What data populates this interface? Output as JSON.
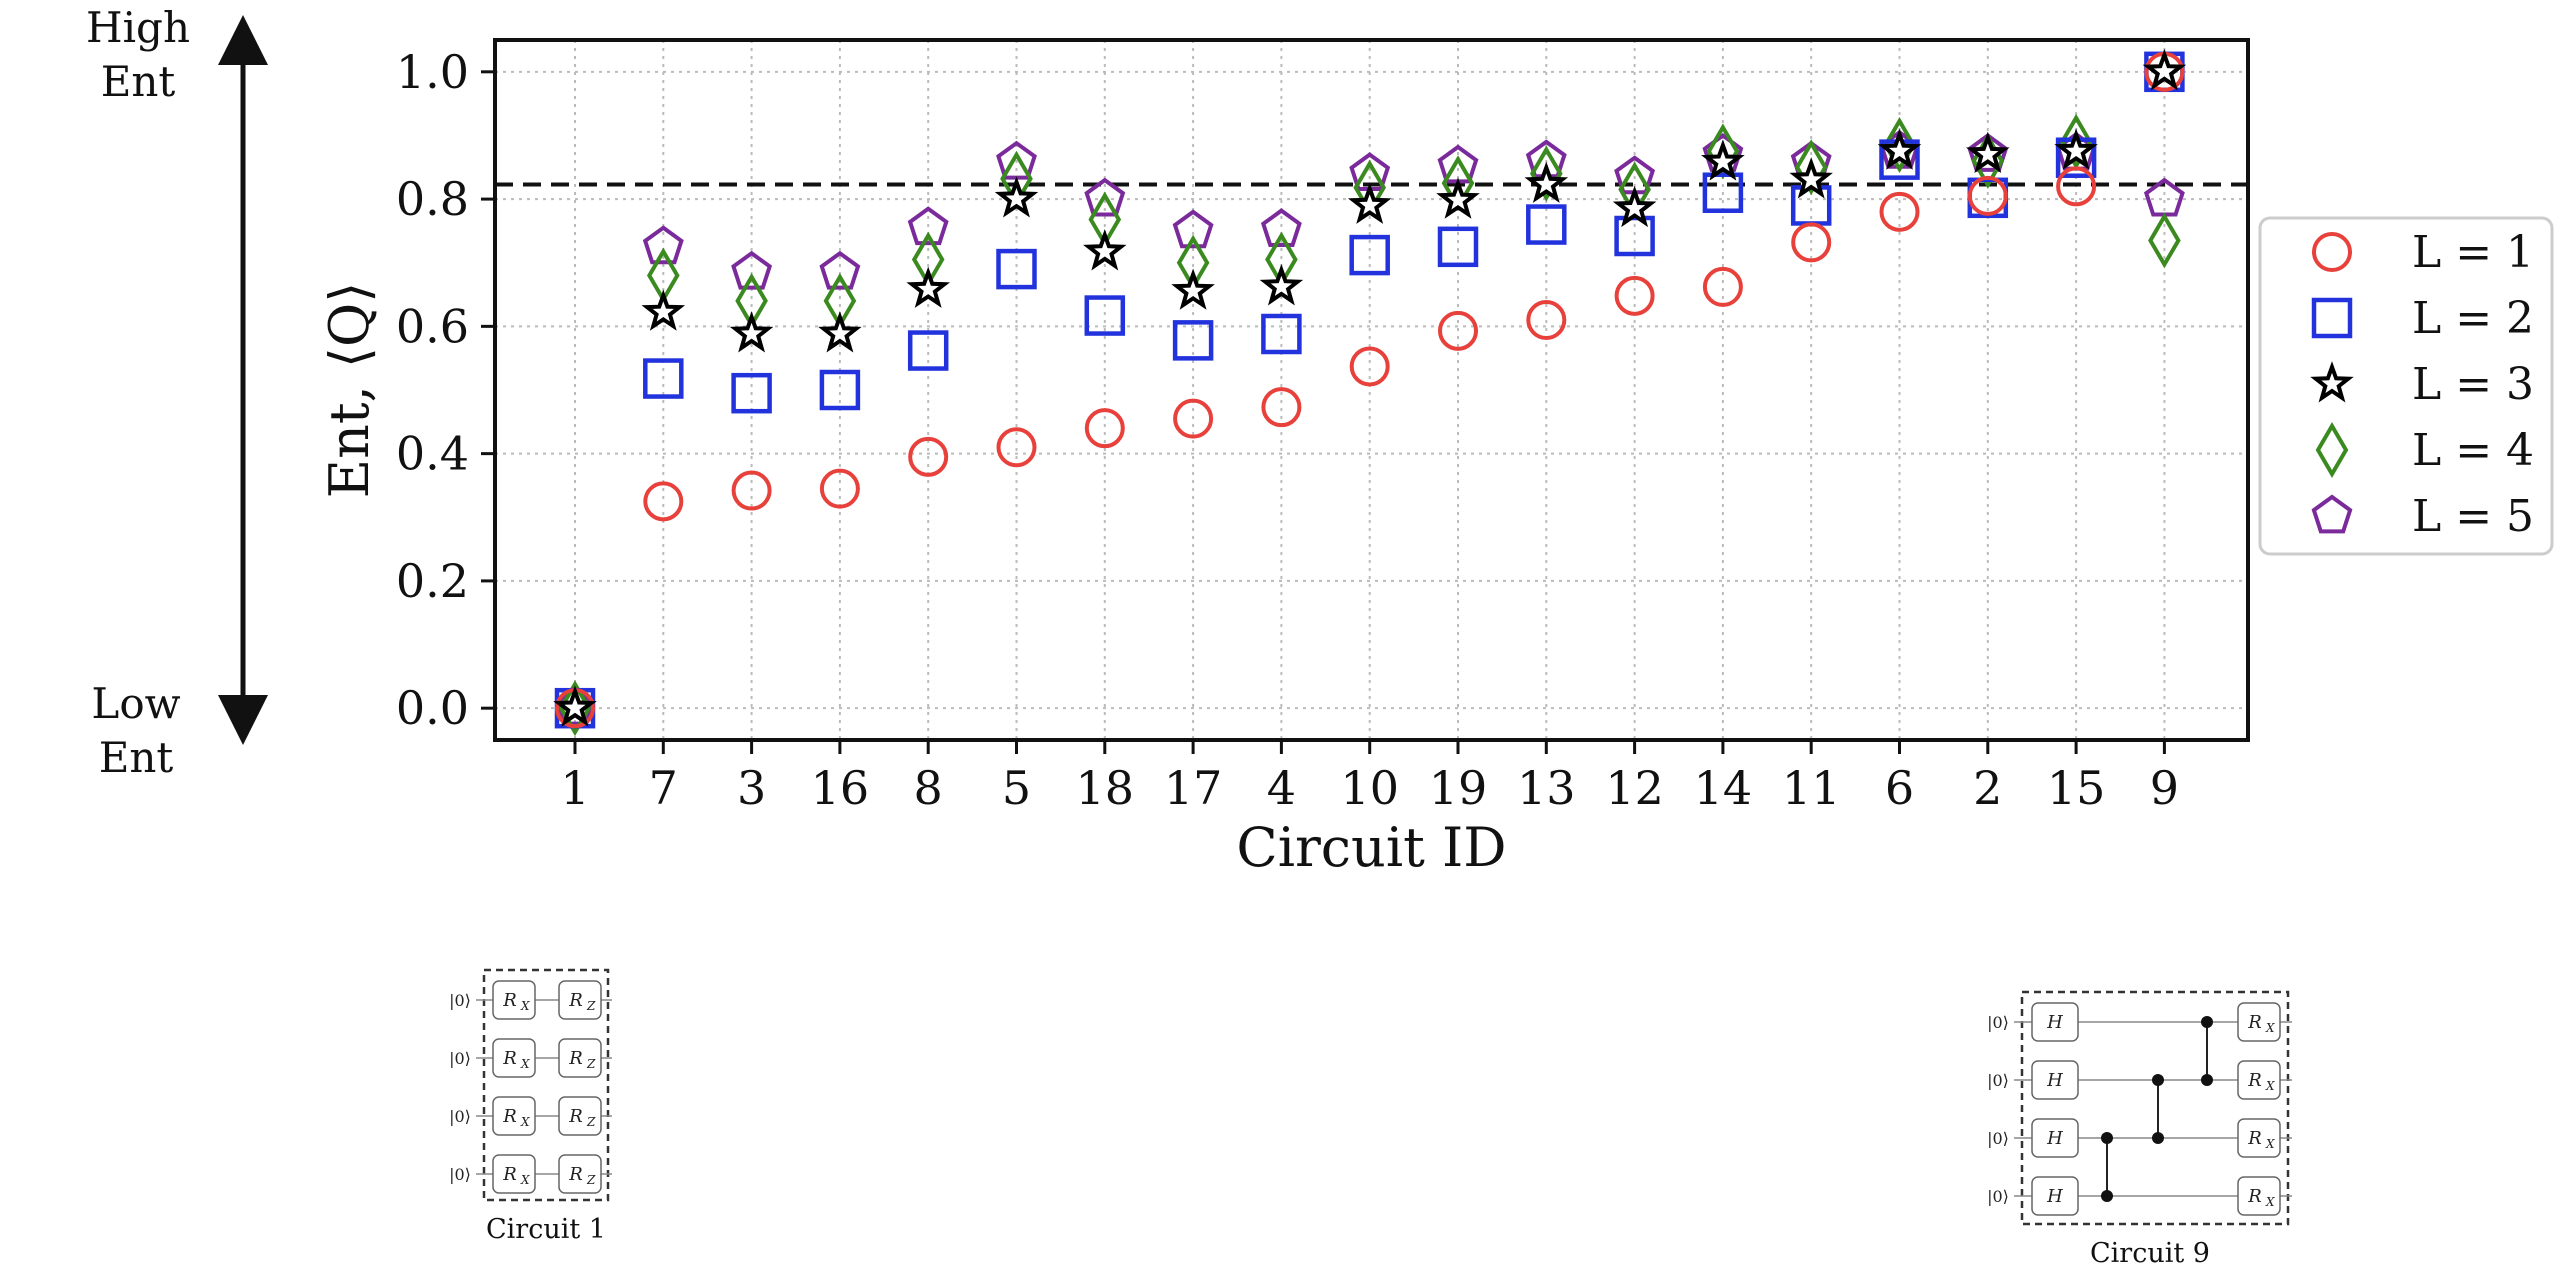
{
  "chart_data": {
    "type": "scatter",
    "title": "",
    "xlabel": "Circuit ID",
    "ylabel": "Ent, ⟨Q⟩",
    "ylim": [
      -0.05,
      1.05
    ],
    "yticks": [
      "0.0",
      "0.2",
      "0.4",
      "0.6",
      "0.8",
      "1.0"
    ],
    "categories": [
      "1",
      "7",
      "3",
      "16",
      "8",
      "5",
      "18",
      "17",
      "4",
      "10",
      "19",
      "13",
      "12",
      "14",
      "11",
      "6",
      "2",
      "15",
      "9"
    ],
    "grid": true,
    "legend_position": "right",
    "reference_line": {
      "y": 0.823,
      "style": "dashed"
    },
    "series": [
      {
        "name": "L = 1",
        "marker": "circle",
        "color": "#e8413c",
        "values": [
          0.0,
          0.325,
          0.342,
          0.345,
          0.395,
          0.41,
          0.44,
          0.455,
          0.473,
          0.537,
          0.593,
          0.61,
          0.648,
          0.662,
          0.732,
          0.78,
          0.805,
          0.82,
          1.0
        ]
      },
      {
        "name": "L = 2",
        "marker": "square",
        "color": "#2233dd",
        "values": [
          0.0,
          0.518,
          0.495,
          0.5,
          0.562,
          0.69,
          0.617,
          0.578,
          0.588,
          0.712,
          0.725,
          0.76,
          0.742,
          0.81,
          0.79,
          0.862,
          0.802,
          0.865,
          1.0
        ]
      },
      {
        "name": "L = 3",
        "marker": "star",
        "color": "#000000",
        "values": [
          0.0,
          0.622,
          0.588,
          0.588,
          0.658,
          0.8,
          0.717,
          0.655,
          0.662,
          0.79,
          0.798,
          0.823,
          0.785,
          0.858,
          0.83,
          0.875,
          0.87,
          0.875,
          1.0
        ]
      },
      {
        "name": "L = 4",
        "marker": "diamond",
        "color": "#3a8a1f",
        "values": [
          0.0,
          0.68,
          0.64,
          0.64,
          0.705,
          0.832,
          0.768,
          0.7,
          0.705,
          0.818,
          0.825,
          0.84,
          0.815,
          0.875,
          0.85,
          0.885,
          0.86,
          0.89,
          0.735
        ]
      },
      {
        "name": "L = 5",
        "marker": "pentagon",
        "color": "#7a2a9a",
        "values": [
          0.0,
          0.725,
          0.685,
          0.685,
          0.755,
          0.858,
          0.8,
          0.75,
          0.752,
          0.84,
          0.852,
          0.86,
          0.835,
          0.87,
          0.858,
          0.875,
          0.87,
          0.872,
          0.8
        ]
      }
    ]
  },
  "side_labels": {
    "high_line1": "High",
    "high_line2": "Ent",
    "low_line1": "Low",
    "low_line2": "Ent"
  },
  "circuits": {
    "circuit1": {
      "caption": "Circuit 1",
      "ket": "|0⟩",
      "gate1_base": "R",
      "gate1_sub": "X",
      "gate2_base": "R",
      "gate2_sub": "Z"
    },
    "circuit9": {
      "caption": "Circuit 9",
      "ket": "|0⟩",
      "gate_h": "H",
      "gate_x_base": "R",
      "gate_x_sub": "X"
    }
  }
}
